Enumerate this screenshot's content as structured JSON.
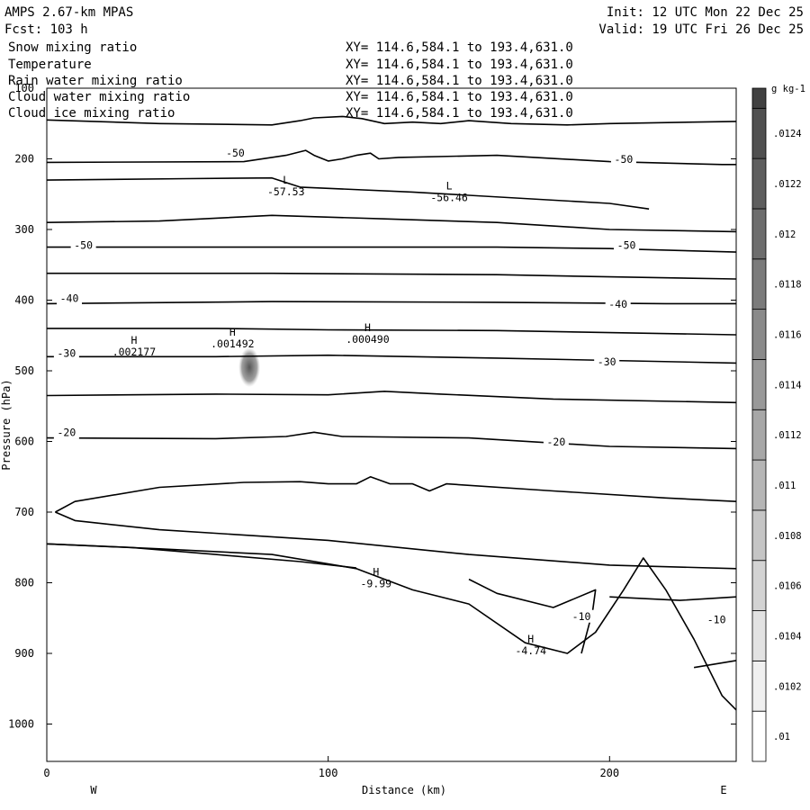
{
  "header": {
    "model": "AMPS 2.67-km MPAS",
    "forecast": "Fcst:  103 h",
    "init": "Init: 12 UTC Mon 22 Dec 25",
    "valid": "Valid: 19 UTC Fri 26 Dec 25"
  },
  "fields": [
    {
      "name": "Snow mixing ratio",
      "xy": "XY= 114.6,584.1 to 193.4,631.0",
      "color": "#000000"
    },
    {
      "name": "Temperature",
      "xy": "XY= 114.6,584.1 to 193.4,631.0",
      "color": "#000000"
    },
    {
      "name": "Rain water mixing ratio",
      "xy": "XY= 114.6,584.1 to 193.4,631.0",
      "color": "#ff0000"
    },
    {
      "name": "Cloud water mixing ratio",
      "xy": "XY= 114.6,584.1 to 193.4,631.0",
      "color": "#0000ff"
    },
    {
      "name": "Cloud ice mixing ratio",
      "xy": "XY= 114.6,584.1 to 193.4,631.0",
      "color": "#000000"
    }
  ],
  "chart_data": {
    "type": "contour",
    "xlabel": "Distance (km)",
    "ylabel": "Pressure (hPa)",
    "xlim": [
      0,
      245
    ],
    "ylim": [
      1050,
      100
    ],
    "x_ticks": [
      0,
      100,
      200
    ],
    "y_ticks": [
      100,
      200,
      300,
      400,
      500,
      600,
      700,
      800,
      900,
      1000
    ],
    "left_end_label": "W",
    "right_end_label": "E",
    "grid": false,
    "colorbar": {
      "unit": "g kg-1",
      "labels": [
        ".01",
        ".0102",
        ".0104",
        ".0106",
        ".0108",
        ".011",
        ".0112",
        ".0114",
        ".0116",
        ".0118",
        ".012",
        ".0122",
        ".0124"
      ],
      "min": 0.01,
      "max": 0.0126,
      "placement": "right"
    },
    "contour_labels": [
      {
        "text": "-50",
        "x": 67,
        "p": 194
      },
      {
        "text": "-50",
        "x": 205,
        "p": 203
      },
      {
        "text": "-50",
        "x": 13,
        "p": 325
      },
      {
        "text": "-50",
        "x": 206,
        "p": 325
      },
      {
        "text": "-40",
        "x": 8,
        "p": 400
      },
      {
        "text": "-40",
        "x": 203,
        "p": 408
      },
      {
        "text": "-30",
        "x": 7,
        "p": 478
      },
      {
        "text": "-30",
        "x": 199,
        "p": 490
      },
      {
        "text": "-20",
        "x": 7,
        "p": 590
      },
      {
        "text": "-20",
        "x": 181,
        "p": 603
      },
      {
        "text": "-10",
        "x": 190,
        "p": 850
      },
      {
        "text": "-10",
        "x": 238,
        "p": 855
      }
    ],
    "extrema": [
      {
        "kind": "L",
        "value": "-57.53",
        "x": 85,
        "p": 235
      },
      {
        "kind": "L",
        "value": "-56.46",
        "x": 143,
        "p": 243
      },
      {
        "kind": "H",
        "value": ".002177",
        "x": 31,
        "p": 462
      },
      {
        "kind": "H",
        "value": ".001492",
        "x": 66,
        "p": 450
      },
      {
        "kind": "H",
        "value": ".000490",
        "x": 114,
        "p": 444
      },
      {
        "kind": "H",
        "value": "-9.99",
        "x": 117,
        "p": 790
      },
      {
        "kind": "H",
        "value": "-4.74",
        "x": 172,
        "p": 885
      }
    ],
    "shaded_region": {
      "x_center": 72,
      "p_center": 495,
      "value": 0.0124
    },
    "isotherms": [
      [
        [
          0,
          145
        ],
        [
          40,
          150
        ],
        [
          80,
          152
        ],
        [
          90,
          146
        ],
        [
          95,
          142
        ],
        [
          105,
          140
        ],
        [
          112,
          143
        ],
        [
          120,
          150
        ],
        [
          130,
          148
        ],
        [
          140,
          150
        ],
        [
          150,
          146
        ],
        [
          165,
          150
        ],
        [
          185,
          152
        ],
        [
          200,
          150
        ],
        [
          245,
          147
        ]
      ],
      [
        [
          0,
          205
        ],
        [
          70,
          204
        ],
        [
          85,
          195
        ],
        [
          92,
          188
        ],
        [
          95,
          195
        ],
        [
          100,
          203
        ],
        [
          105,
          200
        ],
        [
          110,
          195
        ],
        [
          115,
          192
        ],
        [
          118,
          200
        ],
        [
          125,
          198
        ],
        [
          160,
          195
        ],
        [
          200,
          204
        ],
        [
          240,
          208
        ],
        [
          245,
          208
        ]
      ],
      [
        [
          0,
          230
        ],
        [
          50,
          228
        ],
        [
          80,
          227
        ],
        [
          90,
          240
        ],
        [
          130,
          247
        ],
        [
          200,
          263
        ],
        [
          214,
          271
        ]
      ],
      [
        [
          0,
          290
        ],
        [
          40,
          288
        ],
        [
          80,
          280
        ],
        [
          120,
          285
        ],
        [
          160,
          290
        ],
        [
          200,
          300
        ],
        [
          245,
          303
        ]
      ],
      [
        [
          0,
          325
        ],
        [
          80,
          325
        ],
        [
          160,
          325
        ],
        [
          200,
          327
        ],
        [
          245,
          332
        ]
      ],
      [
        [
          0,
          362
        ],
        [
          80,
          362
        ],
        [
          160,
          364
        ],
        [
          200,
          367
        ],
        [
          245,
          370
        ]
      ],
      [
        [
          0,
          405
        ],
        [
          80,
          402
        ],
        [
          160,
          403
        ],
        [
          220,
          405
        ],
        [
          245,
          405
        ]
      ],
      [
        [
          0,
          440
        ],
        [
          60,
          440
        ],
        [
          100,
          442
        ],
        [
          160,
          443
        ],
        [
          245,
          449
        ]
      ],
      [
        [
          0,
          480
        ],
        [
          60,
          480
        ],
        [
          100,
          478
        ],
        [
          160,
          482
        ],
        [
          245,
          489
        ]
      ],
      [
        [
          0,
          535
        ],
        [
          60,
          533
        ],
        [
          100,
          534
        ],
        [
          120,
          529
        ],
        [
          140,
          533
        ],
        [
          180,
          540
        ],
        [
          245,
          545
        ]
      ],
      [
        [
          0,
          595
        ],
        [
          60,
          596
        ],
        [
          85,
          593
        ],
        [
          95,
          587
        ],
        [
          105,
          593
        ],
        [
          150,
          595
        ],
        [
          200,
          607
        ],
        [
          245,
          610
        ]
      ],
      [
        [
          3,
          700
        ],
        [
          10,
          685
        ],
        [
          40,
          665
        ],
        [
          70,
          658
        ],
        [
          90,
          657
        ],
        [
          100,
          660
        ],
        [
          110,
          660
        ],
        [
          115,
          650
        ],
        [
          122,
          660
        ],
        [
          130,
          660
        ],
        [
          136,
          670
        ],
        [
          142,
          660
        ],
        [
          180,
          670
        ],
        [
          220,
          680
        ],
        [
          245,
          685
        ]
      ],
      [
        [
          3,
          700
        ],
        [
          10,
          712
        ],
        [
          40,
          725
        ],
        [
          100,
          740
        ],
        [
          150,
          760
        ],
        [
          200,
          775
        ],
        [
          245,
          780
        ]
      ],
      [
        [
          0,
          745
        ],
        [
          30,
          750
        ],
        [
          60,
          760
        ],
        [
          90,
          770
        ],
        [
          110,
          779
        ]
      ],
      [
        [
          0,
          745
        ],
        [
          40,
          752
        ],
        [
          80,
          760
        ],
        [
          110,
          780
        ],
        [
          130,
          810
        ],
        [
          150,
          830
        ],
        [
          170,
          885
        ],
        [
          185,
          900
        ],
        [
          195,
          870
        ],
        [
          205,
          810
        ],
        [
          212,
          765
        ],
        [
          220,
          810
        ],
        [
          230,
          880
        ],
        [
          240,
          960
        ],
        [
          245,
          980
        ]
      ],
      [
        [
          150,
          795
        ],
        [
          160,
          815
        ],
        [
          180,
          835
        ],
        [
          195,
          810
        ],
        [
          194,
          840
        ],
        [
          190,
          900
        ]
      ],
      [
        [
          200,
          820
        ],
        [
          225,
          825
        ],
        [
          245,
          820
        ]
      ],
      [
        [
          230,
          920
        ],
        [
          245,
          910
        ]
      ]
    ]
  }
}
